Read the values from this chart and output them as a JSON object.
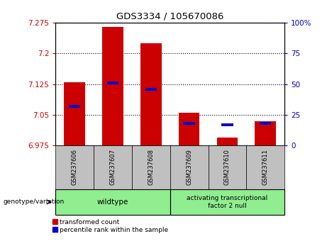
{
  "title": "GDS3334 / 105670086",
  "categories": [
    "GSM237606",
    "GSM237607",
    "GSM237608",
    "GSM237609",
    "GSM237610",
    "GSM237611"
  ],
  "red_values": [
    7.13,
    7.265,
    7.225,
    7.055,
    6.995,
    7.035
  ],
  "blue_values_pct": [
    32,
    51,
    46,
    18,
    17,
    18
  ],
  "ylim_left": [
    6.975,
    7.275
  ],
  "ylim_right": [
    0,
    100
  ],
  "yticks_left": [
    6.975,
    7.05,
    7.125,
    7.2,
    7.275
  ],
  "yticks_right": [
    0,
    25,
    50,
    75,
    100
  ],
  "ytick_labels_right": [
    "0",
    "25",
    "50",
    "75",
    "100%"
  ],
  "left_color": "#cc0000",
  "right_color": "#0000cc",
  "bar_color_red": "#cc0000",
  "bar_color_blue": "#0000cc",
  "group1_label": "wildtype",
  "group2_label": "activating transcriptional\nfactor 2 null",
  "group1_indices": [
    0,
    1,
    2
  ],
  "group2_indices": [
    3,
    4,
    5
  ],
  "genotype_label": "genotype/variation",
  "legend1": "transformed count",
  "legend2": "percentile rank within the sample",
  "group_bg_color": "#90ee90",
  "tick_bg_color": "#c0c0c0",
  "base_value": 6.975
}
